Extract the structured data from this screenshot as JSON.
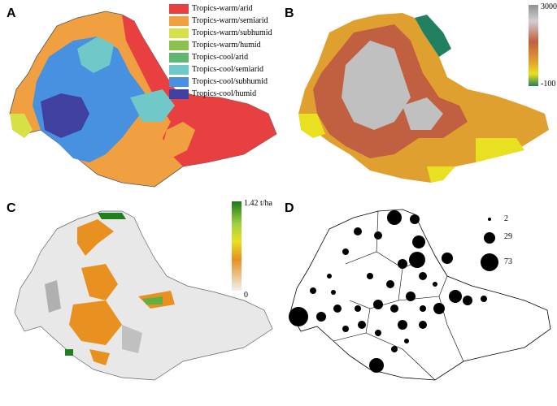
{
  "panels": {
    "a": {
      "letter": "A"
    },
    "b": {
      "letter": "B"
    },
    "c": {
      "letter": "C"
    },
    "d": {
      "letter": "D"
    }
  },
  "legend_a": [
    {
      "label": "Tropics-warm/arid",
      "color": "#e84040"
    },
    {
      "label": "Tropics-warm/semiarid",
      "color": "#f0a040"
    },
    {
      "label": "Tropics-warm/subhumid",
      "color": "#d8e048"
    },
    {
      "label": "Tropics-warm/humid",
      "color": "#8cc050"
    },
    {
      "label": "Tropics-cool/arid",
      "color": "#60b870"
    },
    {
      "label": "Tropics-cool/semiarid",
      "color": "#70c8c8"
    },
    {
      "label": "Tropics-cool/subhumid",
      "color": "#4890e0"
    },
    {
      "label": "Tropics-cool/humid",
      "color": "#4040a0"
    }
  ],
  "scale_b": {
    "top": "3000 m",
    "bottom": "-100 m"
  },
  "scale_c": {
    "top": "1.42 t/ha",
    "bottom": "0"
  },
  "legend_d": [
    {
      "label": "2",
      "value": 2
    },
    {
      "label": "29",
      "value": 29
    },
    {
      "label": "73",
      "value": 73
    }
  ]
}
